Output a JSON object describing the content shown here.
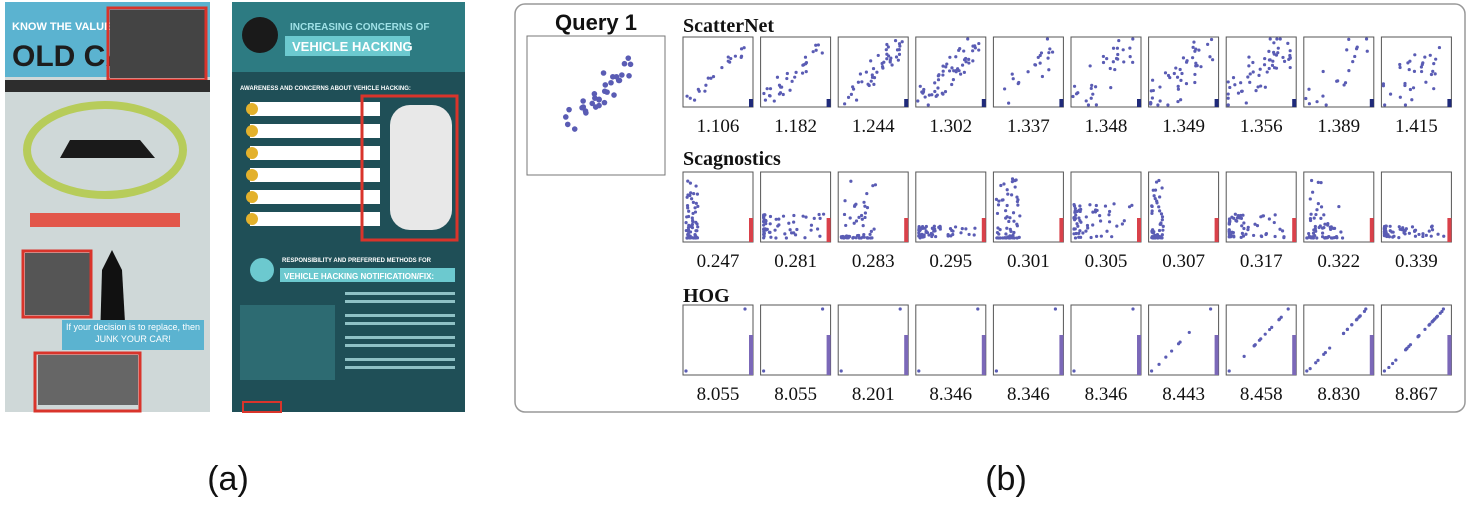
{
  "panel_a": {
    "caption": "(a)",
    "infographics": [
      {
        "title": "KNOW THE VALUE OF YOUR",
        "headline": "OLD CAR",
        "note": "If your decision is to replace, then JUNK YOUR CAR!"
      },
      {
        "title": "INCREASING CONCERNS OF",
        "headline": "VEHICLE HACKING",
        "section1": "AWARENESS AND CONCERNS ABOUT VEHICLE HACKING:",
        "section2": "RESPONSIBILITY AND PREFERRED METHODS FOR",
        "section2_headline": "VEHICLE HACKING NOTIFICATION/FIX:"
      }
    ]
  },
  "panel_b": {
    "caption": "(b)",
    "query": "Query 1",
    "rows": [
      {
        "method": "ScatterNet",
        "scores": [
          "1.106",
          "1.182",
          "1.244",
          "1.302",
          "1.337",
          "1.348",
          "1.349",
          "1.356",
          "1.389",
          "1.415"
        ]
      },
      {
        "method": "Scagnostics",
        "scores": [
          "0.247",
          "0.281",
          "0.283",
          "0.295",
          "0.301",
          "0.305",
          "0.307",
          "0.317",
          "0.322",
          "0.339"
        ]
      },
      {
        "method": "HOG",
        "scores": [
          "8.055",
          "8.055",
          "8.201",
          "8.346",
          "8.346",
          "8.346",
          "8.443",
          "8.458",
          "8.830",
          "8.867"
        ]
      }
    ]
  }
}
